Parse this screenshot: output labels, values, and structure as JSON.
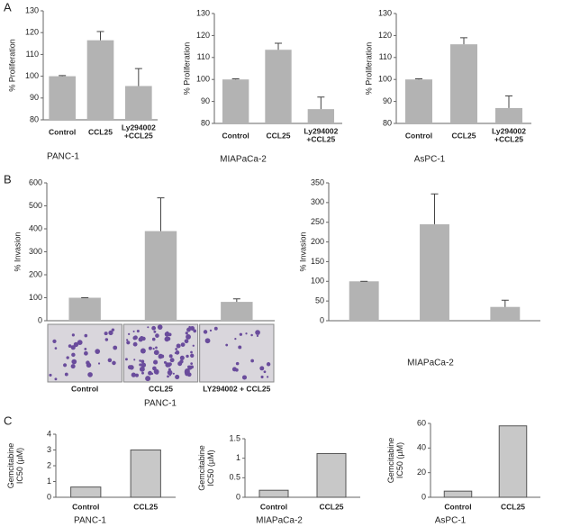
{
  "panel_labels": [
    "A",
    "B",
    "C"
  ],
  "chart_data": [
    {
      "type": "bar",
      "categories": [
        "Control",
        "CCL25",
        "Ly294002\n+CCL25"
      ],
      "values": [
        100,
        116.5,
        95.5
      ],
      "errors": [
        0.3,
        4,
        8
      ],
      "color": "#b3b3b3",
      "ylabel": "% Proliferation",
      "xlabel": "PANC-1",
      "ylim": [
        80,
        130
      ],
      "yticks": [
        80,
        90,
        100,
        110,
        120,
        130
      ]
    },
    {
      "type": "bar",
      "categories": [
        "Control",
        "CCL25",
        "Ly294002\n+CCL25"
      ],
      "values": [
        100,
        113.5,
        86.5
      ],
      "errors": [
        0.3,
        3,
        5.5
      ],
      "color": "#b3b3b3",
      "ylabel": "% Proliferation",
      "xlabel": "MIAPaCa-2",
      "ylim": [
        80,
        130
      ],
      "yticks": [
        80,
        90,
        100,
        110,
        120,
        130
      ]
    },
    {
      "type": "bar",
      "categories": [
        "Control",
        "CCL25",
        "Ly294002\n+CCL25"
      ],
      "values": [
        100,
        116,
        87
      ],
      "errors": [
        0.3,
        3,
        5.5
      ],
      "color": "#b3b3b3",
      "ylabel": "% Proliferation",
      "xlabel": "AsPC-1",
      "ylim": [
        80,
        130
      ],
      "yticks": [
        80,
        90,
        100,
        110,
        120,
        130
      ]
    },
    {
      "type": "bar",
      "categories": [
        "Control",
        "CCL25",
        "LY294002 + CCL25"
      ],
      "values": [
        100,
        390,
        82
      ],
      "errors": [
        0,
        145,
        13
      ],
      "color": "#b3b3b3",
      "ylabel": "% Invasion",
      "xlabel": "PANC-1",
      "ylim": [
        0,
        600
      ],
      "yticks": [
        0,
        100,
        200,
        300,
        400,
        500,
        600
      ]
    },
    {
      "type": "bar",
      "categories": [
        null,
        null,
        null
      ],
      "values": [
        100,
        245,
        35
      ],
      "errors": [
        0,
        77,
        17
      ],
      "color": "#b3b3b3",
      "ylabel": "% Invasion",
      "xlabel": "MIAPaCa-2",
      "ylim": [
        0,
        350
      ],
      "yticks": [
        0,
        50,
        100,
        150,
        200,
        250,
        300,
        350
      ]
    },
    {
      "type": "bar",
      "categories": [
        "Control",
        "CCL25"
      ],
      "values": [
        0.65,
        3.0
      ],
      "color": "#c8c8c8",
      "edgecolor": "#555555",
      "ylabel": "Gemcitabine\nIC50 (µM)",
      "xlabel": "PANC-1",
      "ylim": [
        0,
        4
      ],
      "yticks": [
        0,
        1,
        2,
        3,
        4
      ]
    },
    {
      "type": "bar",
      "categories": [
        "Control",
        "CCL25"
      ],
      "values": [
        0.18,
        1.12
      ],
      "color": "#c8c8c8",
      "edgecolor": "#555555",
      "ylabel": "Gemcitabine\nIC50 (µM)",
      "xlabel": "MIAPaCa-2",
      "ylim": [
        0,
        1.5
      ],
      "yticks": [
        0,
        0.5,
        1,
        1.5
      ]
    },
    {
      "type": "bar",
      "categories": [
        "Control",
        "CCL25"
      ],
      "values": [
        5,
        58
      ],
      "color": "#c8c8c8",
      "edgecolor": "#555555",
      "ylabel": "Gemcitabine\nIC50 (µM)",
      "xlabel": "AsPC-1",
      "ylim": [
        0,
        60
      ],
      "yticks": [
        0,
        20,
        40,
        60
      ]
    }
  ]
}
